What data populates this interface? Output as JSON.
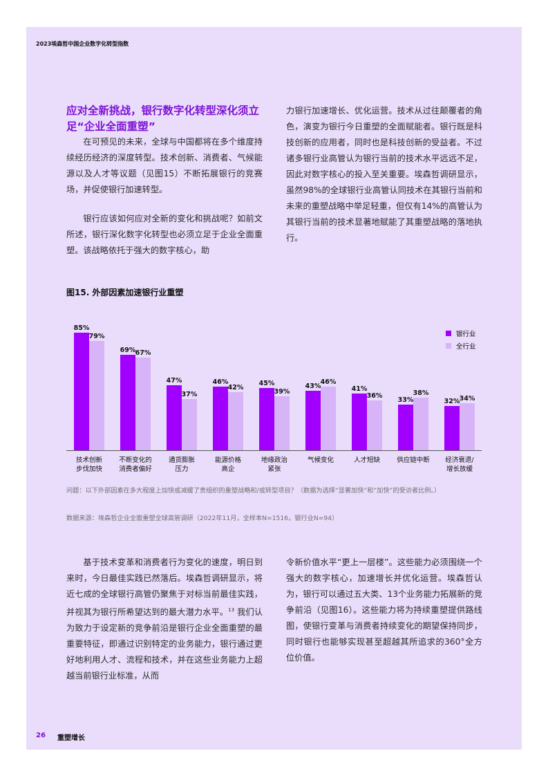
{
  "header": {
    "running_title": "2023埃森哲中国企业数字化转型指数"
  },
  "section": {
    "title": "应对全新挑战，银行数字化转型深化须立足“企业全面重塑”",
    "para1": "在可预见的未来，全球与中国都将在多个维度持续经历经济的深度转型。技术创新、消费者、气候能源以及人才等议题（见图15）不断拓展银行的竞赛场，并促使银行加速转型。",
    "para2": "银行应该如何应对全新的变化和挑战呢？如前文所述，银行深化数字化转型也必须立足于企业全面重塑。该战略依托于强大的数字核心，助",
    "para3": "力银行加速增长、优化运营。技术从过往颠覆者的角色，演变为银行今日重塑的全面赋能者。银行既是科技创新的应用者，同时也是科技创新的受益者。不过诸多银行业高管认为银行当前的技术水平远远不足，因此对数字核心的投入至关重要。埃森哲调研显示，虽然98%的全球银行业高管认同技术在其银行当前和未来的重塑战略中举足轻重，但仅有14%的高管认为其银行当前的技术显著地赋能了其重塑战略的落地执行。"
  },
  "figure": {
    "title": "图15. 外部因素加速银行业重塑",
    "question": "问题：以下外部因素在多大程度上加快或减缓了贵组织的重塑战略和/或转型项目？（数据为选择“显著加快”和“加快”的受访者比例。）",
    "source": "数据来源：埃森哲企业全面重塑全球高管调研（2022年11月，全样本N=1516，银行业N=94）"
  },
  "chart_data": {
    "type": "bar",
    "title": "图15. 外部因素加速银行业重塑",
    "categories": [
      [
        "技术创新",
        "步伐加快"
      ],
      [
        "不断变化的",
        "消费者偏好"
      ],
      [
        "通货膨胀",
        "压力"
      ],
      [
        "能源价格",
        "高企"
      ],
      [
        "地缘政治",
        "紧张"
      ],
      [
        "气候变化"
      ],
      [
        "人才短缺"
      ],
      [
        "供应链中断"
      ],
      [
        "经济衰退/",
        "增长放缓"
      ]
    ],
    "series": [
      {
        "name": "银行业",
        "values": [
          85,
          69,
          47,
          46,
          45,
          43,
          41,
          33,
          32
        ],
        "color": "#a100ff"
      },
      {
        "name": "全行业",
        "values": [
          79,
          67,
          37,
          42,
          39,
          46,
          36,
          38,
          34
        ],
        "color": "#d7b3f7"
      }
    ],
    "value_suffix": "%",
    "ylim": [
      0,
      100
    ],
    "xlabel": "",
    "ylabel": "",
    "legend_position": "top-right",
    "grid": false
  },
  "body2": {
    "para1": "基于技术变革和消费者行为变化的速度，明日到来时，今日最佳实践已然落后。埃森哲调研显示，将近七成的全球银行高管仍聚焦于对标当前最佳实践，并视其为银行所希望达到的最大潜力水平。",
    "footnote_ref": "13",
    "para1_cont": " 我们认为致力于设定新的竞争前沿是银行企业全面重塑的最重要特征，即通过识别特定的业务能力，银行通过更好地利用人才、流程和技术，并在这些业务能力上超越当前银行业标准，从而",
    "para2": "令新价值水平“更上一层楼”。这些能力必须围绕一个强大的数字核心，加速增长并优化运营。埃森哲认为，银行可以通过五大类、13个业务能力拓展新的竞争前沿（见图16）。这些能力将为持续重塑提供路线图，使银行变革与消费者持续变化的期望保持同步，同时银行也能够实现甚至超越其所追求的360°全方位价值。"
  },
  "footer": {
    "page_number": "26",
    "section_label": "重塑增长"
  }
}
